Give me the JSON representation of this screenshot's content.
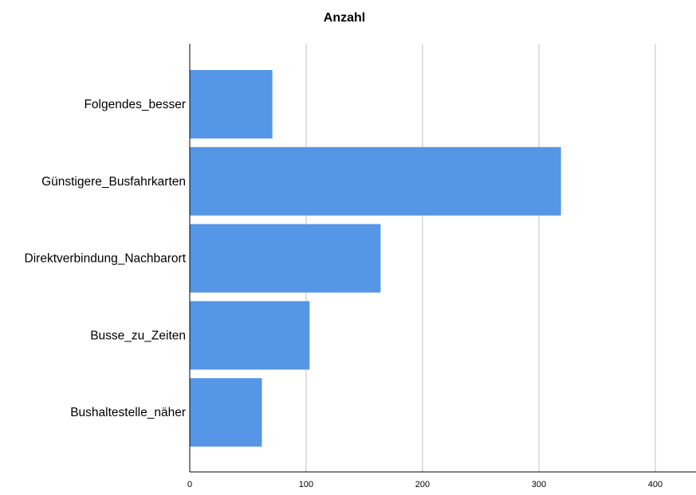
{
  "colors": {
    "bar": "#5596E6",
    "grid": "#cfcfcf",
    "axis": "#000000"
  },
  "chart_data": {
    "type": "bar",
    "orientation": "horizontal",
    "title": "Anzahl",
    "xlabel": "",
    "ylabel": "",
    "categories": [
      "Folgendes_besser",
      "Günstigere_Busfahrkarten",
      "Direktverbindung_Nachbarort",
      "Busse_zu_Zeiten",
      "Bushaltestelle_näher"
    ],
    "values": [
      71,
      319,
      164,
      103,
      62
    ],
    "xlim": [
      0,
      435
    ],
    "ticks": [
      0,
      100,
      200,
      300,
      400
    ],
    "tick_labels": [
      "0",
      "100",
      "200",
      "300",
      "400"
    ],
    "grid": "vertical",
    "legend": "none"
  }
}
